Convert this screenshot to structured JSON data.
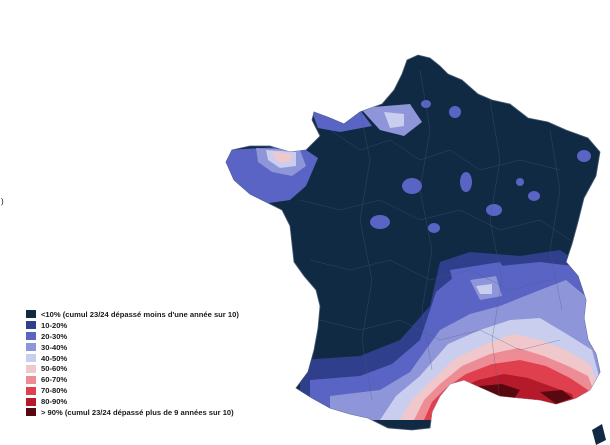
{
  "stray_mark": ")",
  "colors": {
    "land_base": "#112a44",
    "outline": "#4a5e78"
  },
  "legend": {
    "items": [
      {
        "label": "<10% (cumul 23/24 dépassé moins d'une année sur 10)",
        "color": "#112a44"
      },
      {
        "label": "10-20%",
        "color": "#2f3f8c"
      },
      {
        "label": "20-30%",
        "color": "#5a64c4"
      },
      {
        "label": "30-40%",
        "color": "#8e95d8"
      },
      {
        "label": "40-50%",
        "color": "#c9cdee"
      },
      {
        "label": "50-60%",
        "color": "#f0c8cc"
      },
      {
        "label": "60-70%",
        "color": "#ee8c95"
      },
      {
        "label": "70-80%",
        "color": "#e0404e"
      },
      {
        "label": "80-90%",
        "color": "#b51a2a"
      },
      {
        "label": "> 90% (cumul 23/24 dépassé plus de 9 années sur 10)",
        "color": "#5a0810"
      }
    ]
  }
}
